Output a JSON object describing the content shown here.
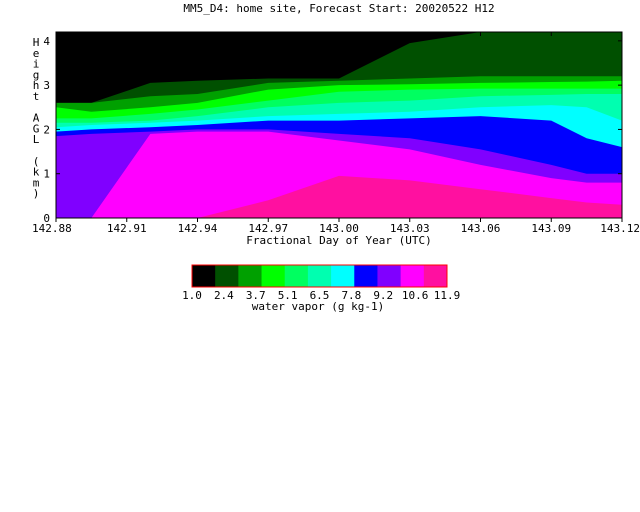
{
  "chart_data": {
    "type": "area",
    "title": "MM5_D4: home site,  Forecast Start: 20020522 H12",
    "xlabel": "Fractional Day of Year (UTC)",
    "ylabel": "Height AGL (km)",
    "x_ticks": [
      "142.88",
      "142.91",
      "142.94",
      "142.97",
      "143.00",
      "143.03",
      "143.06",
      "143.09",
      "143.12"
    ],
    "y_ticks": [
      "0",
      "1",
      "2",
      "3",
      "4"
    ],
    "xlim": [
      142.88,
      143.12
    ],
    "ylim": [
      0,
      4.2
    ],
    "x": [
      142.88,
      142.895,
      142.92,
      142.94,
      142.97,
      143.0,
      143.03,
      143.06,
      143.09,
      143.105,
      143.12
    ],
    "bands": [
      {
        "level": "1.0",
        "color": "#000000",
        "top": [
          4.2,
          4.2,
          4.2,
          4.2,
          4.2,
          4.2,
          4.2,
          4.2,
          4.2,
          4.2,
          4.2
        ]
      },
      {
        "level": "1.7",
        "color": "#005000",
        "top": [
          2.6,
          2.6,
          3.05,
          3.1,
          3.15,
          3.15,
          3.95,
          4.2,
          4.2,
          4.2,
          4.2
        ]
      },
      {
        "level": "2.4",
        "color": "#00a000",
        "top": [
          2.6,
          2.6,
          2.75,
          2.8,
          3.05,
          3.1,
          3.15,
          3.2,
          3.2,
          3.2,
          3.2
        ]
      },
      {
        "level": "3.0",
        "color": "#00ff00",
        "top": [
          2.5,
          2.4,
          2.5,
          2.6,
          2.9,
          3.0,
          3.02,
          3.05,
          3.07,
          3.08,
          3.1
        ]
      },
      {
        "level": "3.7",
        "color": "#00ff60",
        "top": [
          2.25,
          2.25,
          2.35,
          2.45,
          2.65,
          2.85,
          2.9,
          2.92,
          2.92,
          2.92,
          2.92
        ]
      },
      {
        "level": "5.1",
        "color": "#00ffb0",
        "top": [
          2.15,
          2.15,
          2.2,
          2.3,
          2.5,
          2.6,
          2.65,
          2.75,
          2.78,
          2.8,
          2.8
        ]
      },
      {
        "level": "6.5",
        "color": "#00ffff",
        "top": [
          2.05,
          2.1,
          2.15,
          2.2,
          2.3,
          2.35,
          2.4,
          2.5,
          2.55,
          2.5,
          2.2
        ]
      },
      {
        "level": "7.8",
        "color": "#0000ff",
        "top": [
          1.95,
          2.0,
          2.05,
          2.1,
          2.2,
          2.2,
          2.25,
          2.3,
          2.2,
          1.8,
          1.6
        ]
      },
      {
        "level": "9.2",
        "color": "#8000ff",
        "top": [
          1.85,
          1.9,
          1.95,
          2.0,
          2.0,
          1.9,
          1.8,
          1.55,
          1.2,
          1.0,
          1.0
        ]
      },
      {
        "level": "10.6",
        "color": "#ff00ff",
        "top": [
          0.0,
          0.0,
          1.9,
          1.95,
          1.95,
          1.75,
          1.55,
          1.2,
          0.9,
          0.8,
          0.8
        ]
      },
      {
        "level": "11.9",
        "color": "#ff10a0",
        "top": [
          0.0,
          0.0,
          0.0,
          0.0,
          0.4,
          0.95,
          0.85,
          0.65,
          0.45,
          0.35,
          0.3
        ]
      }
    ],
    "colorbar": {
      "label": "water vapor (g kg-1)",
      "ticks": [
        "1.0",
        "2.4",
        "3.7",
        "5.1",
        "6.5",
        "7.8",
        "9.2",
        "10.6",
        "11.9"
      ],
      "colors": [
        "#000000",
        "#005000",
        "#00a000",
        "#00ff00",
        "#00ff60",
        "#00ffb0",
        "#00ffff",
        "#0000ff",
        "#8000ff",
        "#ff00ff",
        "#ff10a0"
      ],
      "outline": "#ff0000"
    }
  }
}
